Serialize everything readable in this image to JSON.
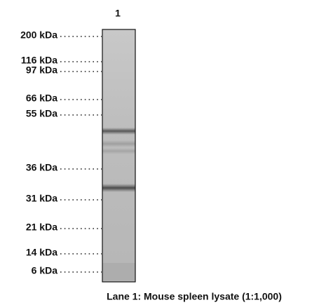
{
  "lane_label": "1",
  "markers": [
    "200 kDa",
    "116 kDa",
    "97 kDa",
    "66 kDa",
    "55 kDa",
    "36 kDa",
    "31 kDa",
    "21 kDa",
    "14 kDa",
    "6 kDa"
  ],
  "caption": "Lane 1: Mouse spleen lysate (1:1,000)"
}
